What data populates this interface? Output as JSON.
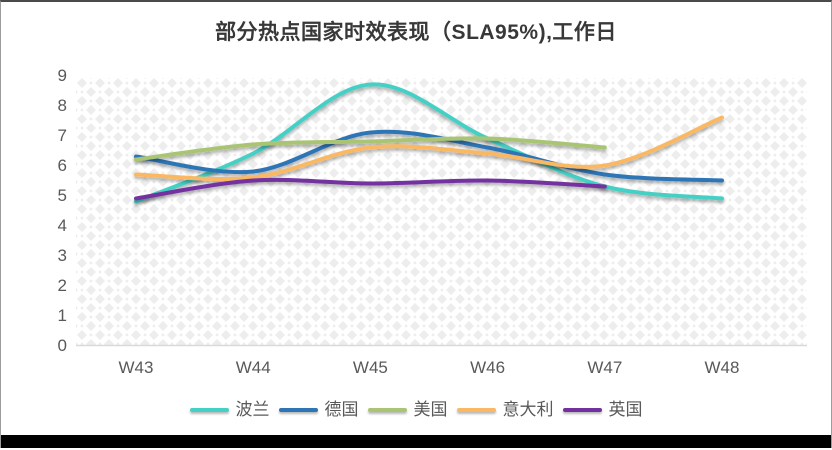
{
  "title": "部分热点国家时效表现（SLA95%),工作日",
  "chart_data": {
    "type": "line",
    "title": "部分热点国家时效表现（SLA95%),工作日",
    "categories": [
      "W43",
      "W44",
      "W45",
      "W46",
      "W47",
      "W48"
    ],
    "series": [
      {
        "name": "波兰",
        "color": "#45d0c5",
        "values": [
          4.8,
          6.4,
          8.7,
          6.9,
          5.3,
          4.9
        ]
      },
      {
        "name": "德国",
        "color": "#2e75b6",
        "values": [
          6.3,
          5.8,
          7.1,
          6.6,
          5.7,
          5.5
        ]
      },
      {
        "name": "美国",
        "color": "#a9c573",
        "values": [
          6.2,
          6.7,
          6.8,
          6.9,
          6.6,
          null
        ]
      },
      {
        "name": "意大利",
        "color": "#fbb864",
        "values": [
          5.7,
          5.6,
          6.6,
          6.4,
          6.0,
          7.6
        ]
      },
      {
        "name": "英国",
        "color": "#7331a0",
        "values": [
          4.9,
          5.5,
          5.4,
          5.5,
          5.3,
          null
        ]
      }
    ],
    "xlabel": "",
    "ylabel": "",
    "ylim": [
      0,
      9
    ],
    "yticks": [
      0,
      1,
      2,
      3,
      4,
      5,
      6,
      7,
      8,
      9
    ],
    "grid": false,
    "line_style": "smooth",
    "legend_position": "bottom"
  },
  "colors": {
    "title_text": "#383838",
    "axis_text": "#595959",
    "axis_line": "#d9d9d9",
    "plot_pattern": "#ededed",
    "bottom_bar": "#000000"
  }
}
